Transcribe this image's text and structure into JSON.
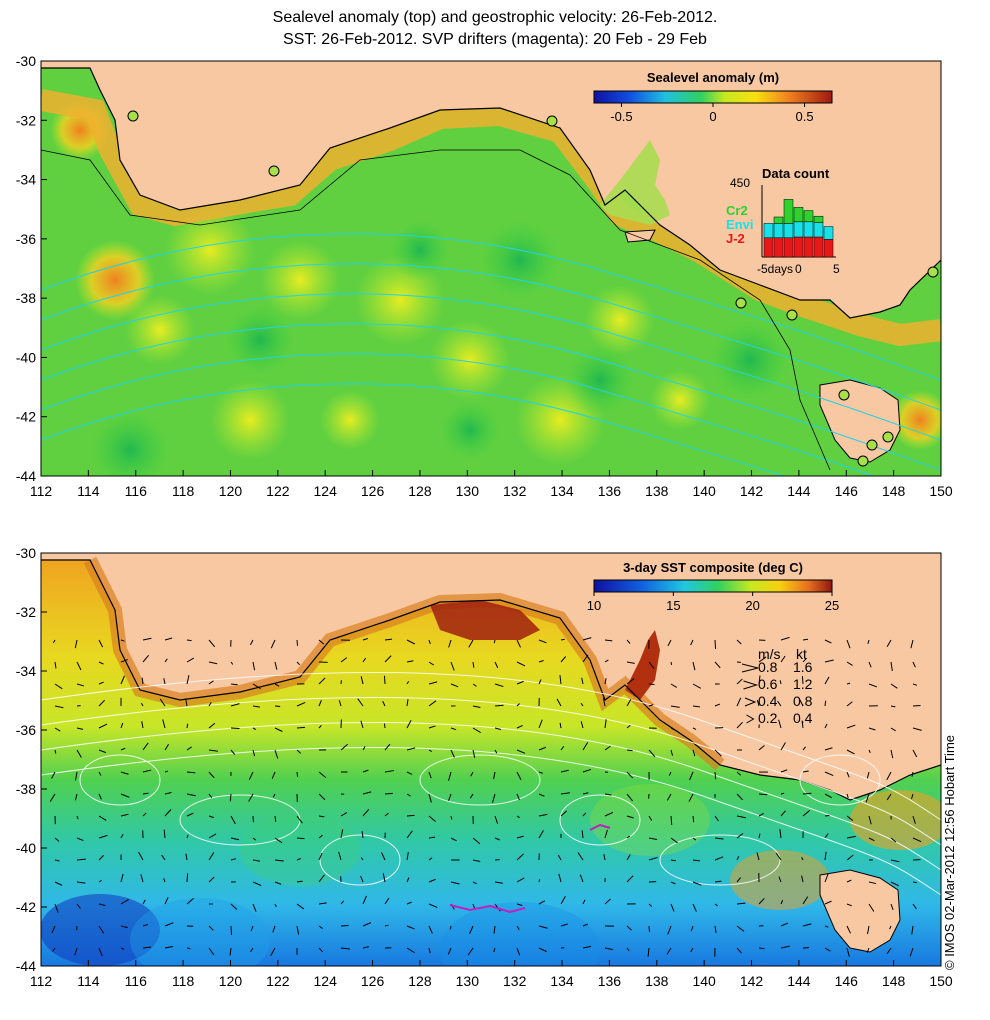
{
  "title": {
    "line1": "Sealevel anomaly (top) and geostrophic velocity: 26-Feb-2012.",
    "line2": "SST: 26-Feb-2012. SVP drifters (magenta): 20 Feb - 29 Feb"
  },
  "colors": {
    "land": "#f7c8a2",
    "contour_white": "#ffffff",
    "contour_cyan": "#22d3e6",
    "coast": "#000000",
    "station": "#a8e04a"
  },
  "top_map": {
    "colorbar": {
      "label": "Sealevel anomaly (m)",
      "ticks": [
        "-0.5",
        "0",
        "0.5"
      ],
      "range": [
        -0.65,
        0.65
      ]
    },
    "data_count": {
      "title": "Data count",
      "ymax_label": "450",
      "x_left_label": "-5days",
      "x_mid_label": "0",
      "x_right_label": "5",
      "legend": [
        {
          "name": "Cr2",
          "color": "#2fd12f"
        },
        {
          "name": "Envi",
          "color": "#18e0e8"
        },
        {
          "name": "J-2",
          "color": "#e81818"
        }
      ],
      "bars": [
        {
          "j2": 120,
          "envi": 90,
          "cr2": 0
        },
        {
          "j2": 120,
          "envi": 90,
          "cr2": 40
        },
        {
          "j2": 120,
          "envi": 90,
          "cr2": 150
        },
        {
          "j2": 125,
          "envi": 95,
          "cr2": 90
        },
        {
          "j2": 125,
          "envi": 95,
          "cr2": 70
        },
        {
          "j2": 125,
          "envi": 90,
          "cr2": 40
        },
        {
          "j2": 110,
          "envi": 80,
          "cr2": 0
        }
      ]
    }
  },
  "bottom_map": {
    "colorbar": {
      "label": "3-day SST composite (deg C)",
      "ticks": [
        "10",
        "15",
        "20",
        "25"
      ],
      "range": [
        10,
        25
      ]
    },
    "velocity_legend": {
      "header_ms": "m/s",
      "header_kt": "kt",
      "rows": [
        {
          "ms": "0.8",
          "kt": "1.6"
        },
        {
          "ms": "0.6",
          "kt": "1.2"
        },
        {
          "ms": "0.4",
          "kt": "0.8"
        },
        {
          "ms": "0.2",
          "kt": "0.4"
        }
      ]
    },
    "side_label": "© IMOS 02-Mar-2012 12:56 Hobart Time"
  },
  "axes": {
    "lon_ticks": [
      "112",
      "114",
      "116",
      "118",
      "120",
      "122",
      "124",
      "126",
      "128",
      "130",
      "132",
      "134",
      "136",
      "138",
      "140",
      "142",
      "144",
      "146",
      "148",
      "150"
    ],
    "lat_ticks": [
      "-30",
      "-32",
      "-34",
      "-36",
      "-38",
      "-40",
      "-42",
      "-44"
    ]
  }
}
